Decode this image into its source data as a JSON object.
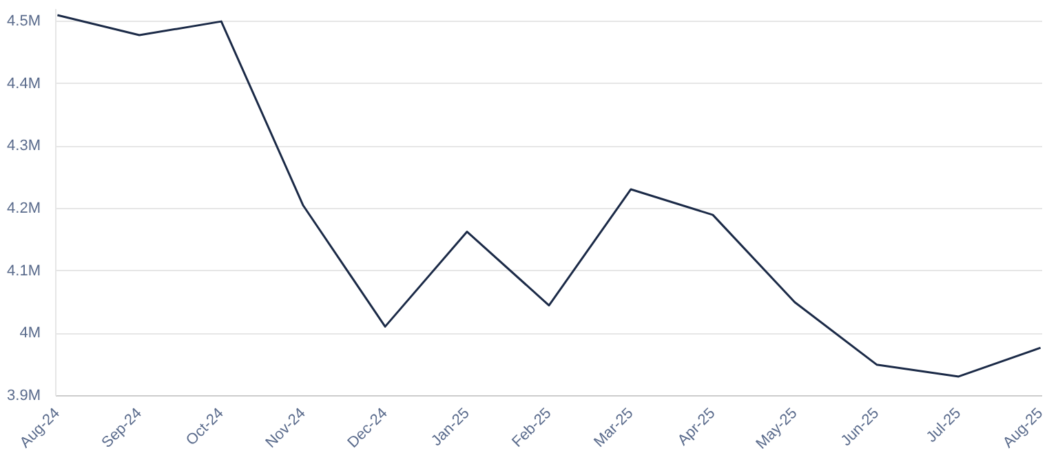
{
  "chart_data": {
    "type": "line",
    "categories": [
      "Aug-24",
      "Sep-24",
      "Oct-24",
      "Nov-24",
      "Dec-24",
      "Jan-25",
      "Feb-25",
      "Mar-25",
      "Apr-25",
      "May-25",
      "Jun-25",
      "Jul-25",
      "Aug-25"
    ],
    "series": [
      {
        "color": "#1b2a47",
        "values": [
          4510000,
          4478000,
          4500000,
          4205000,
          4011000,
          4163000,
          4045000,
          4231000,
          4190000,
          4050000,
          3950000,
          3931000,
          3977000
        ]
      }
    ],
    "ylim": [
      3900000,
      4520000
    ],
    "yticks": [
      {
        "value": 3900000,
        "label": "3.9M"
      },
      {
        "value": 4000000,
        "label": "4M"
      },
      {
        "value": 4100000,
        "label": "4.1M"
      },
      {
        "value": 4200000,
        "label": "4.2M"
      },
      {
        "value": 4300000,
        "label": "4.3M"
      },
      {
        "value": 4400000,
        "label": "4.4M"
      },
      {
        "value": 4500000,
        "label": "4.5M"
      }
    ],
    "grid": "y",
    "marker": "none",
    "line_style": "solid"
  }
}
